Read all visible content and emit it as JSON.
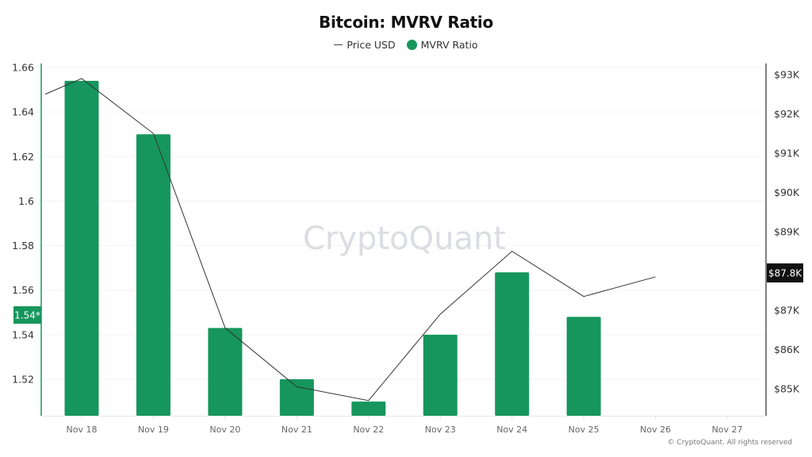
{
  "chart_data": {
    "type": "bar+line",
    "title": "Bitcoin: MVRV Ratio",
    "legend": [
      {
        "name": "Price USD",
        "marker": "line",
        "color": "#444444"
      },
      {
        "name": "MVRV Ratio",
        "marker": "dot",
        "color": "#16965c"
      }
    ],
    "legend_position": "top-center",
    "categories": [
      "Nov 18",
      "Nov 19",
      "Nov 20",
      "Nov 21",
      "Nov 22",
      "Nov 23",
      "Nov 24",
      "Nov 25",
      "Nov 26",
      "Nov 27"
    ],
    "series": [
      {
        "name": "MVRV Ratio",
        "type": "bar",
        "axis": "left",
        "color": "#16965c",
        "values": [
          1.654,
          1.63,
          1.543,
          1.52,
          1.51,
          1.54,
          1.568,
          1.548,
          null,
          null
        ]
      },
      {
        "name": "Price USD",
        "type": "line",
        "axis": "right",
        "color": "#333333",
        "line_start_value": 92500,
        "values": [
          92900,
          91500,
          86550,
          85050,
          84700,
          86900,
          88500,
          87350,
          87850,
          null
        ]
      }
    ],
    "left_axis": {
      "ticks": [
        "1.66",
        "1.64",
        "1.62",
        "1.6",
        "1.58",
        "1.56",
        "1.54",
        "1.52"
      ],
      "tick_values": [
        1.66,
        1.64,
        1.62,
        1.6,
        1.58,
        1.56,
        1.54,
        1.52
      ],
      "ylim": [
        1.5036,
        1.66
      ],
      "current_marker": {
        "label": "1.54*",
        "value": 1.545,
        "color": "#16965c"
      }
    },
    "right_axis": {
      "ticks": [
        "$93K",
        "$92K",
        "$91K",
        "$90K",
        "$89K",
        "$87K",
        "$86K",
        "$85K"
      ],
      "tick_values": [
        93000,
        92000,
        91000,
        90000,
        89000,
        87000,
        86000,
        85000
      ],
      "ylim": [
        84300,
        93200
      ],
      "current_marker": {
        "label": "$87.8K",
        "value": 87850,
        "color": "#111111"
      }
    },
    "grid": "horizontal-light",
    "watermark": "CryptoQuant",
    "copyright": "© CryptoQuant. All rights reserved"
  }
}
